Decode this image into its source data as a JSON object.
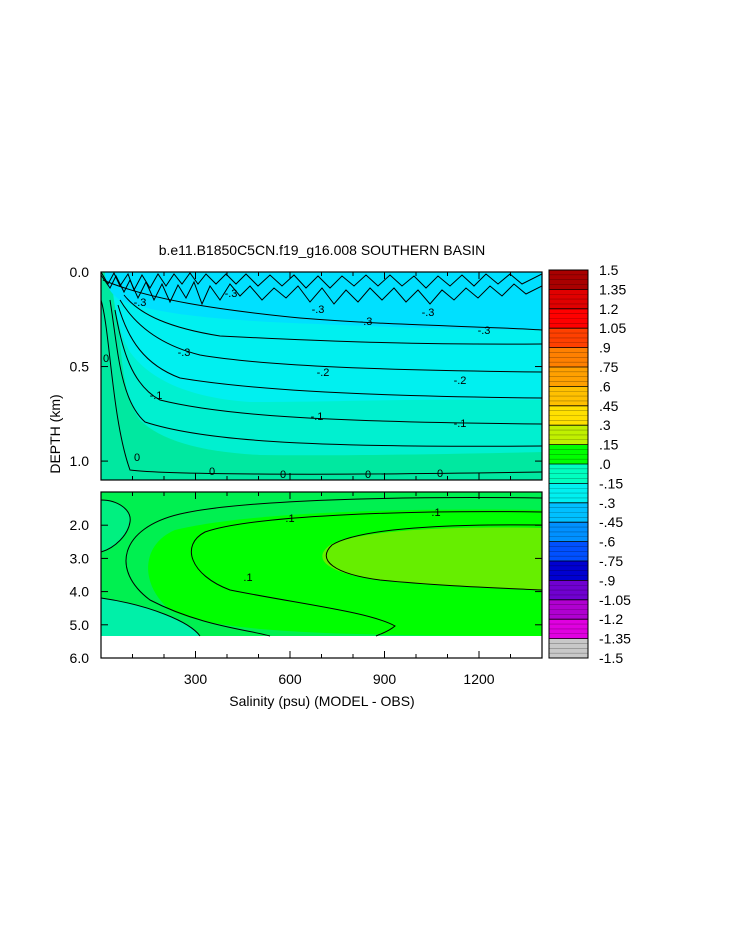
{
  "chart_data": {
    "type": "heatmap",
    "title": "b.e11.B1850C5CN.f19_g16.008 SOUTHERN BASIN",
    "xlabel": "Salinity (psu) (MODEL - OBS)",
    "ylabel": "DEPTH (km)",
    "xlim": [
      0,
      1400
    ],
    "x_ticks": [
      300,
      600,
      900,
      1200
    ],
    "x_tick_labels": [
      "300",
      "600",
      "900",
      "1200"
    ],
    "panels": [
      {
        "name": "upper",
        "ylim": [
          0.0,
          1.1
        ],
        "y_ticks": [
          0.0,
          0.5,
          1.0
        ],
        "y_tick_labels": [
          "0.0",
          "0.5",
          "1.0"
        ],
        "contour_labels": [
          "0",
          "0",
          "0",
          "0",
          "0",
          "0",
          "-.1",
          "-.1",
          "-.1",
          "-.2",
          "-.2",
          "-.3",
          "-.3",
          "-.3",
          "-.3",
          "-.3",
          "-.3",
          "-.3"
        ]
      },
      {
        "name": "lower",
        "ylim": [
          1.0,
          6.0
        ],
        "y_ticks": [
          2.0,
          3.0,
          4.0,
          5.0,
          6.0
        ],
        "y_tick_labels": [
          "2.0",
          "3.0",
          "4.0",
          "5.0",
          "6.0"
        ],
        "contour_labels": [
          ".1",
          ".1",
          ".1"
        ]
      }
    ],
    "colorbar": {
      "labels": [
        "1.5",
        "1.35",
        "1.2",
        "1.05",
        ".9",
        ".75",
        ".6",
        ".45",
        ".3",
        ".15",
        ".0",
        "-.15",
        "-.3",
        "-.45",
        "-.6",
        "-.75",
        "-.9",
        "-1.05",
        "-1.2",
        "-1.35",
        "-1.5"
      ],
      "colors": [
        "#A80000",
        "#E00000",
        "#FF0000",
        "#FF4000",
        "#FF8000",
        "#FFA000",
        "#FFC000",
        "#FFE000",
        "#C0F000",
        "#00FF00",
        "#00FFC0",
        "#00F0F0",
        "#00C0FF",
        "#0090FF",
        "#0050FF",
        "#0000D0",
        "#7000D0",
        "#B000D0",
        "#E000E0",
        "#C8C8C8",
        "#808080"
      ]
    }
  }
}
